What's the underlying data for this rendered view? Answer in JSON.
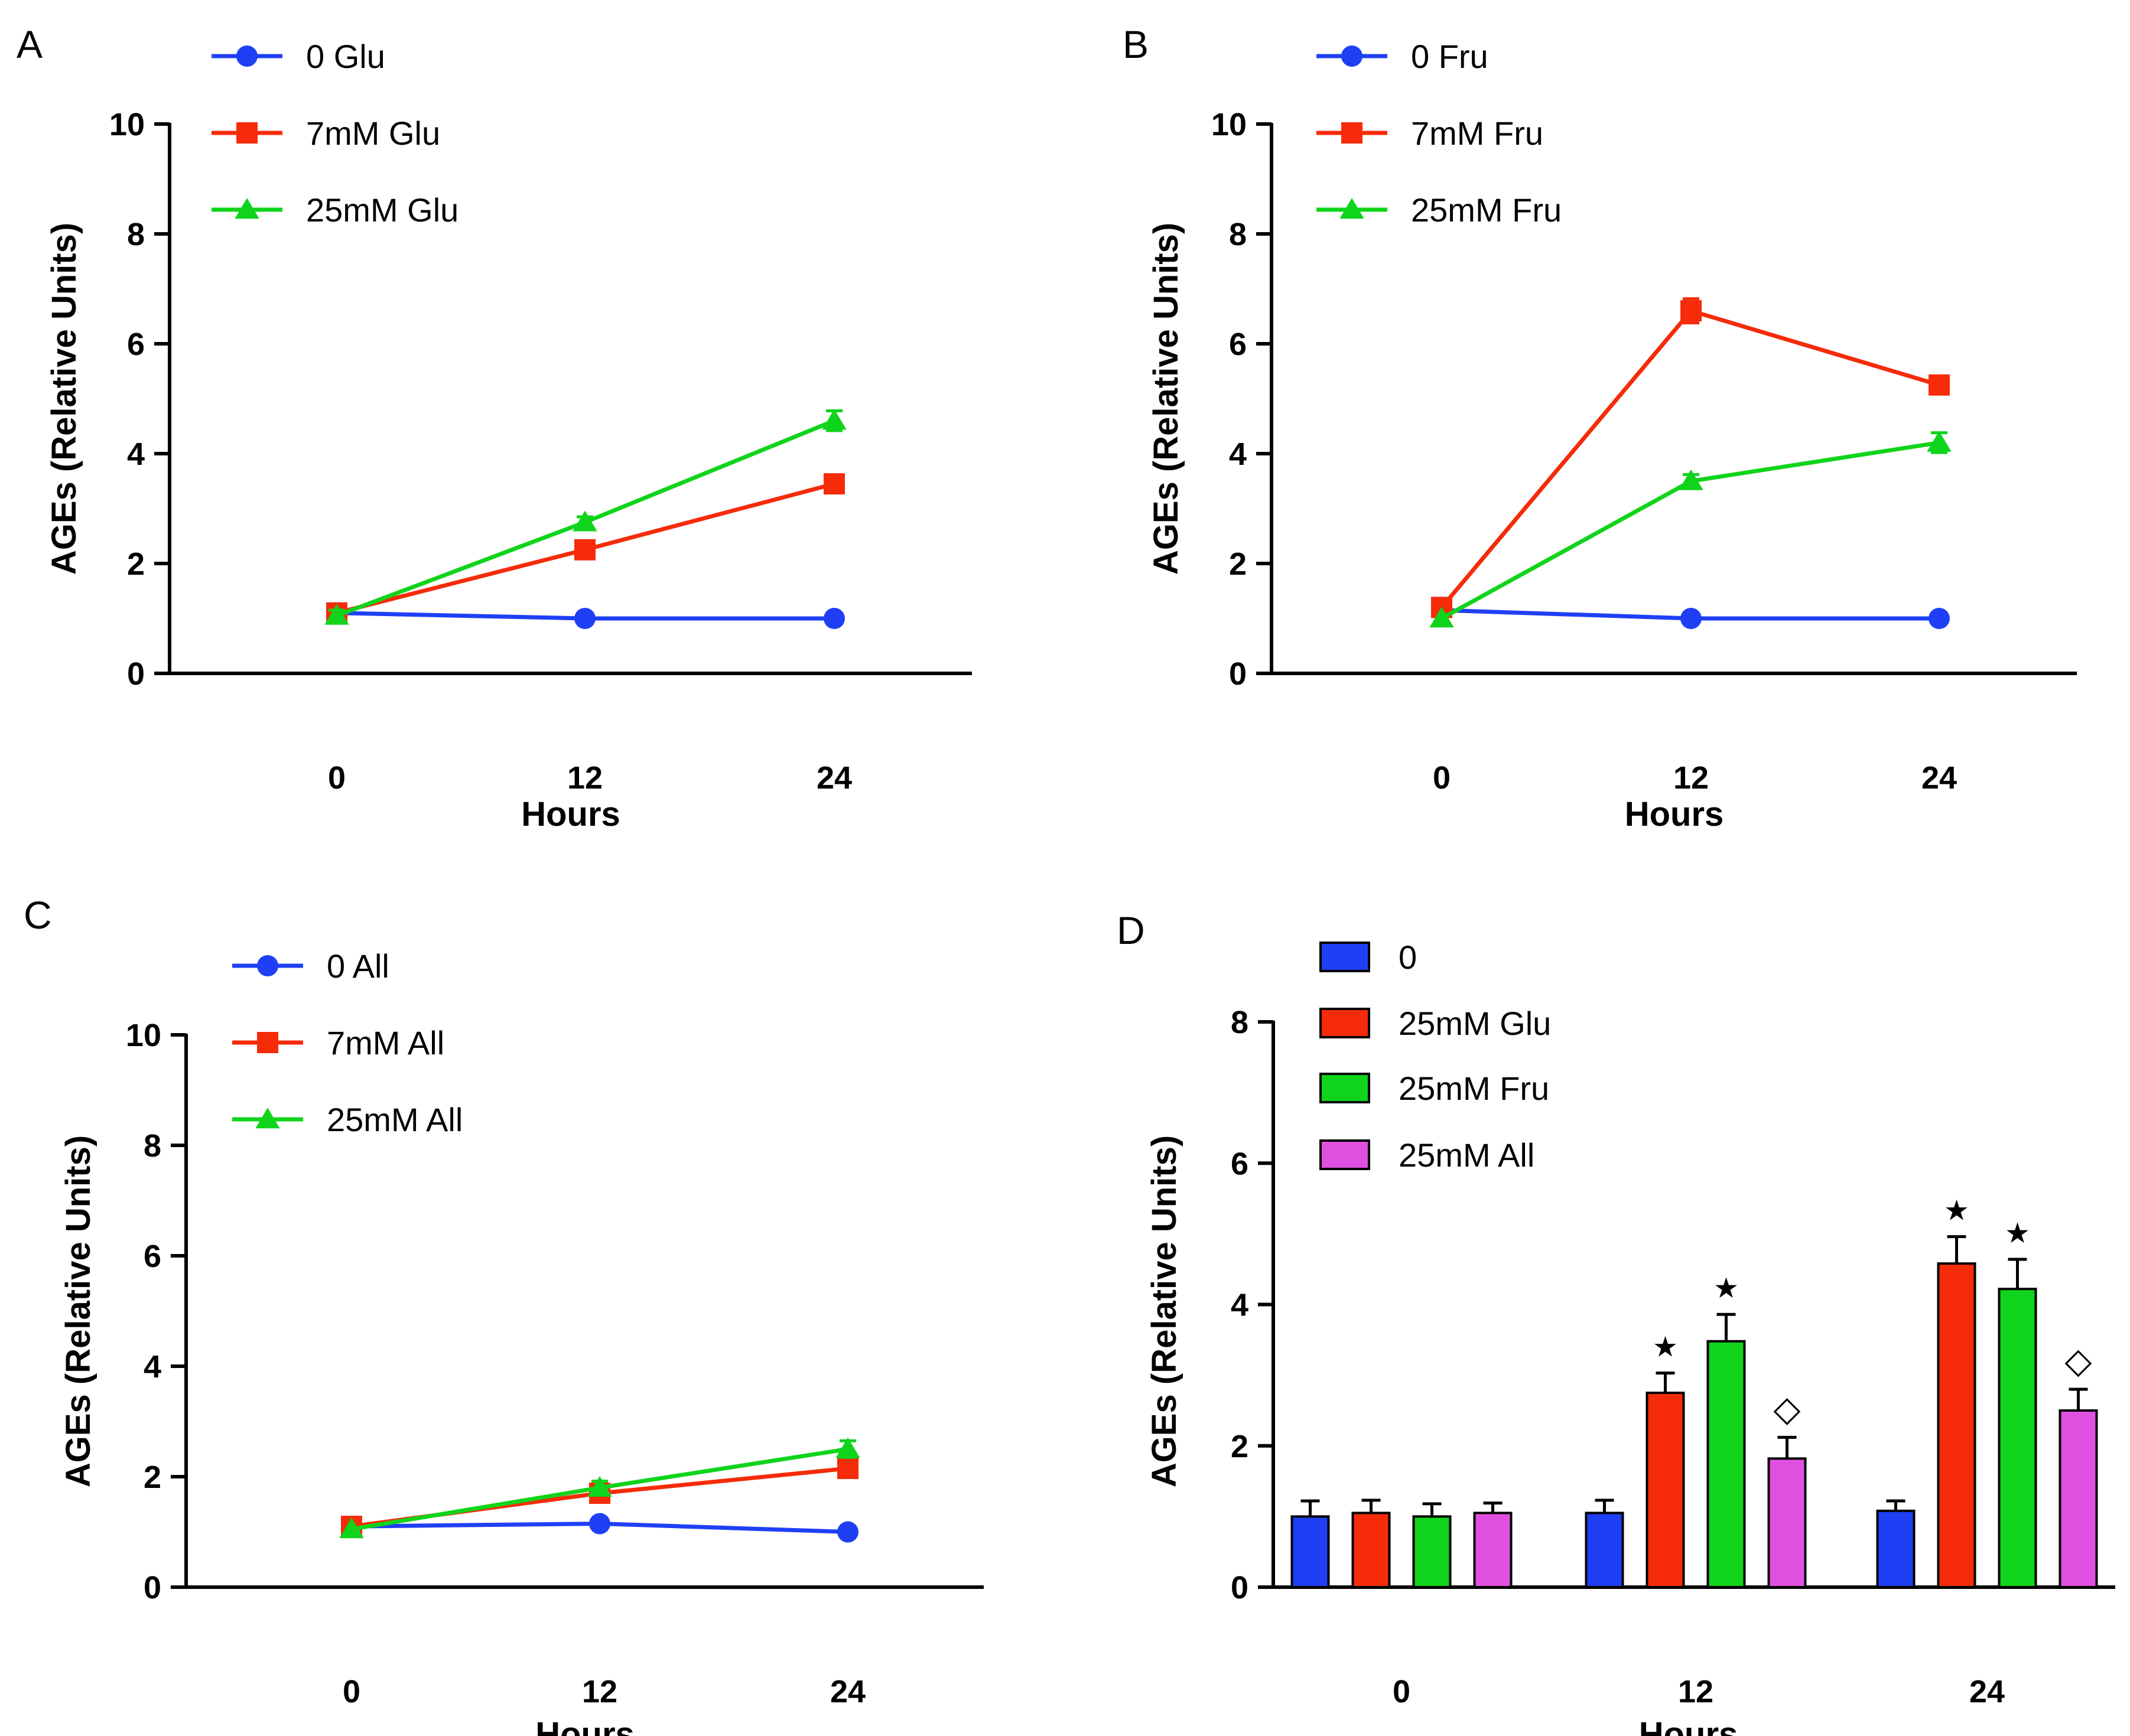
{
  "chart_data": [
    {
      "panel": "A",
      "type": "line",
      "title": "",
      "xlabel": "Hours",
      "ylabel": "AGEs (Relative Units)",
      "x": [
        0,
        12,
        24
      ],
      "x_tick_labels": [
        "0",
        "12",
        "24"
      ],
      "ylim": [
        0,
        10
      ],
      "y_ticks": [
        0,
        2,
        4,
        6,
        8,
        10
      ],
      "legend_position": "top-left",
      "grid": false,
      "series": [
        {
          "name": "0 Glu",
          "color": "#1f3ff5",
          "marker": "circle",
          "values": [
            1.1,
            1.0,
            1.0
          ],
          "errors": [
            0.05,
            0.05,
            0.05
          ]
        },
        {
          "name": "7mM Glu",
          "color": "#f52b0a",
          "marker": "square",
          "values": [
            1.1,
            2.25,
            3.45
          ],
          "errors": [
            0.1,
            0.1,
            0.1
          ]
        },
        {
          "name": "25mM Glu",
          "color": "#10d41b",
          "marker": "triangle",
          "values": [
            1.05,
            2.75,
            4.6
          ],
          "errors": [
            0.1,
            0.1,
            0.18
          ]
        }
      ]
    },
    {
      "panel": "B",
      "type": "line",
      "title": "",
      "xlabel": "Hours",
      "ylabel": "AGEs (Relative Units)",
      "x": [
        0,
        12,
        24
      ],
      "x_tick_labels": [
        "0",
        "12",
        "24"
      ],
      "ylim": [
        0,
        10
      ],
      "y_ticks": [
        0,
        2,
        4,
        6,
        8,
        10
      ],
      "legend_position": "top-left",
      "grid": false,
      "series": [
        {
          "name": "0 Fru",
          "color": "#1f3ff5",
          "marker": "circle",
          "values": [
            1.15,
            1.0,
            1.0
          ],
          "errors": [
            0.05,
            0.05,
            0.05
          ]
        },
        {
          "name": "7mM Fru",
          "color": "#f52b0a",
          "marker": "square",
          "values": [
            1.2,
            6.6,
            5.25
          ],
          "errors": [
            0.05,
            0.22,
            0.12
          ]
        },
        {
          "name": "25mM Fru",
          "color": "#10d41b",
          "marker": "triangle",
          "values": [
            1.0,
            3.5,
            4.2
          ],
          "errors": [
            0.05,
            0.12,
            0.18
          ]
        }
      ]
    },
    {
      "panel": "C",
      "type": "line",
      "title": "",
      "xlabel": "Hours",
      "ylabel": "AGEs (Relative Units)",
      "x": [
        0,
        12,
        24
      ],
      "x_tick_labels": [
        "0",
        "12",
        "24"
      ],
      "ylim": [
        0,
        10
      ],
      "y_ticks": [
        0,
        2,
        4,
        6,
        8,
        10
      ],
      "legend_position": "top-left",
      "grid": false,
      "series": [
        {
          "name": "0 All",
          "color": "#1f3ff5",
          "marker": "circle",
          "values": [
            1.1,
            1.15,
            1.0
          ],
          "errors": [
            0.05,
            0.05,
            0.05
          ]
        },
        {
          "name": "7mM All",
          "color": "#f52b0a",
          "marker": "square",
          "values": [
            1.1,
            1.7,
            2.15
          ],
          "errors": [
            0.1,
            0.1,
            0.1
          ]
        },
        {
          "name": "25mM All",
          "color": "#10d41b",
          "marker": "triangle",
          "values": [
            1.05,
            1.8,
            2.5
          ],
          "errors": [
            0.05,
            0.12,
            0.15
          ]
        }
      ]
    },
    {
      "panel": "D",
      "type": "bar",
      "title": "",
      "xlabel": "Hours",
      "ylabel": "AGEs (Relative Units)",
      "categories": [
        "0",
        "12",
        "24"
      ],
      "ylim": [
        0,
        8
      ],
      "y_ticks": [
        0,
        2,
        4,
        6,
        8
      ],
      "legend_position": "top-left",
      "grid": false,
      "series": [
        {
          "name": "0",
          "color": "#1f3ff5",
          "values": [
            1.0,
            1.05,
            1.08
          ],
          "errors": [
            0.22,
            0.18,
            0.14
          ],
          "annotations": [
            "",
            "",
            ""
          ]
        },
        {
          "name": "25mM Glu",
          "color": "#f52b0a",
          "values": [
            1.05,
            2.75,
            4.58
          ],
          "errors": [
            0.18,
            0.28,
            0.38
          ],
          "annotations": [
            "",
            "★",
            "★"
          ]
        },
        {
          "name": "25mM Fru",
          "color": "#10d41b",
          "values": [
            1.0,
            3.48,
            4.22
          ],
          "errors": [
            0.18,
            0.38,
            0.42
          ],
          "annotations": [
            "",
            "★",
            "★"
          ]
        },
        {
          "name": "25mM All",
          "color": "#e050e0",
          "values": [
            1.05,
            1.82,
            2.5
          ],
          "errors": [
            0.14,
            0.3,
            0.3
          ],
          "annotations": [
            "",
            "◇",
            "◇"
          ]
        }
      ]
    }
  ]
}
